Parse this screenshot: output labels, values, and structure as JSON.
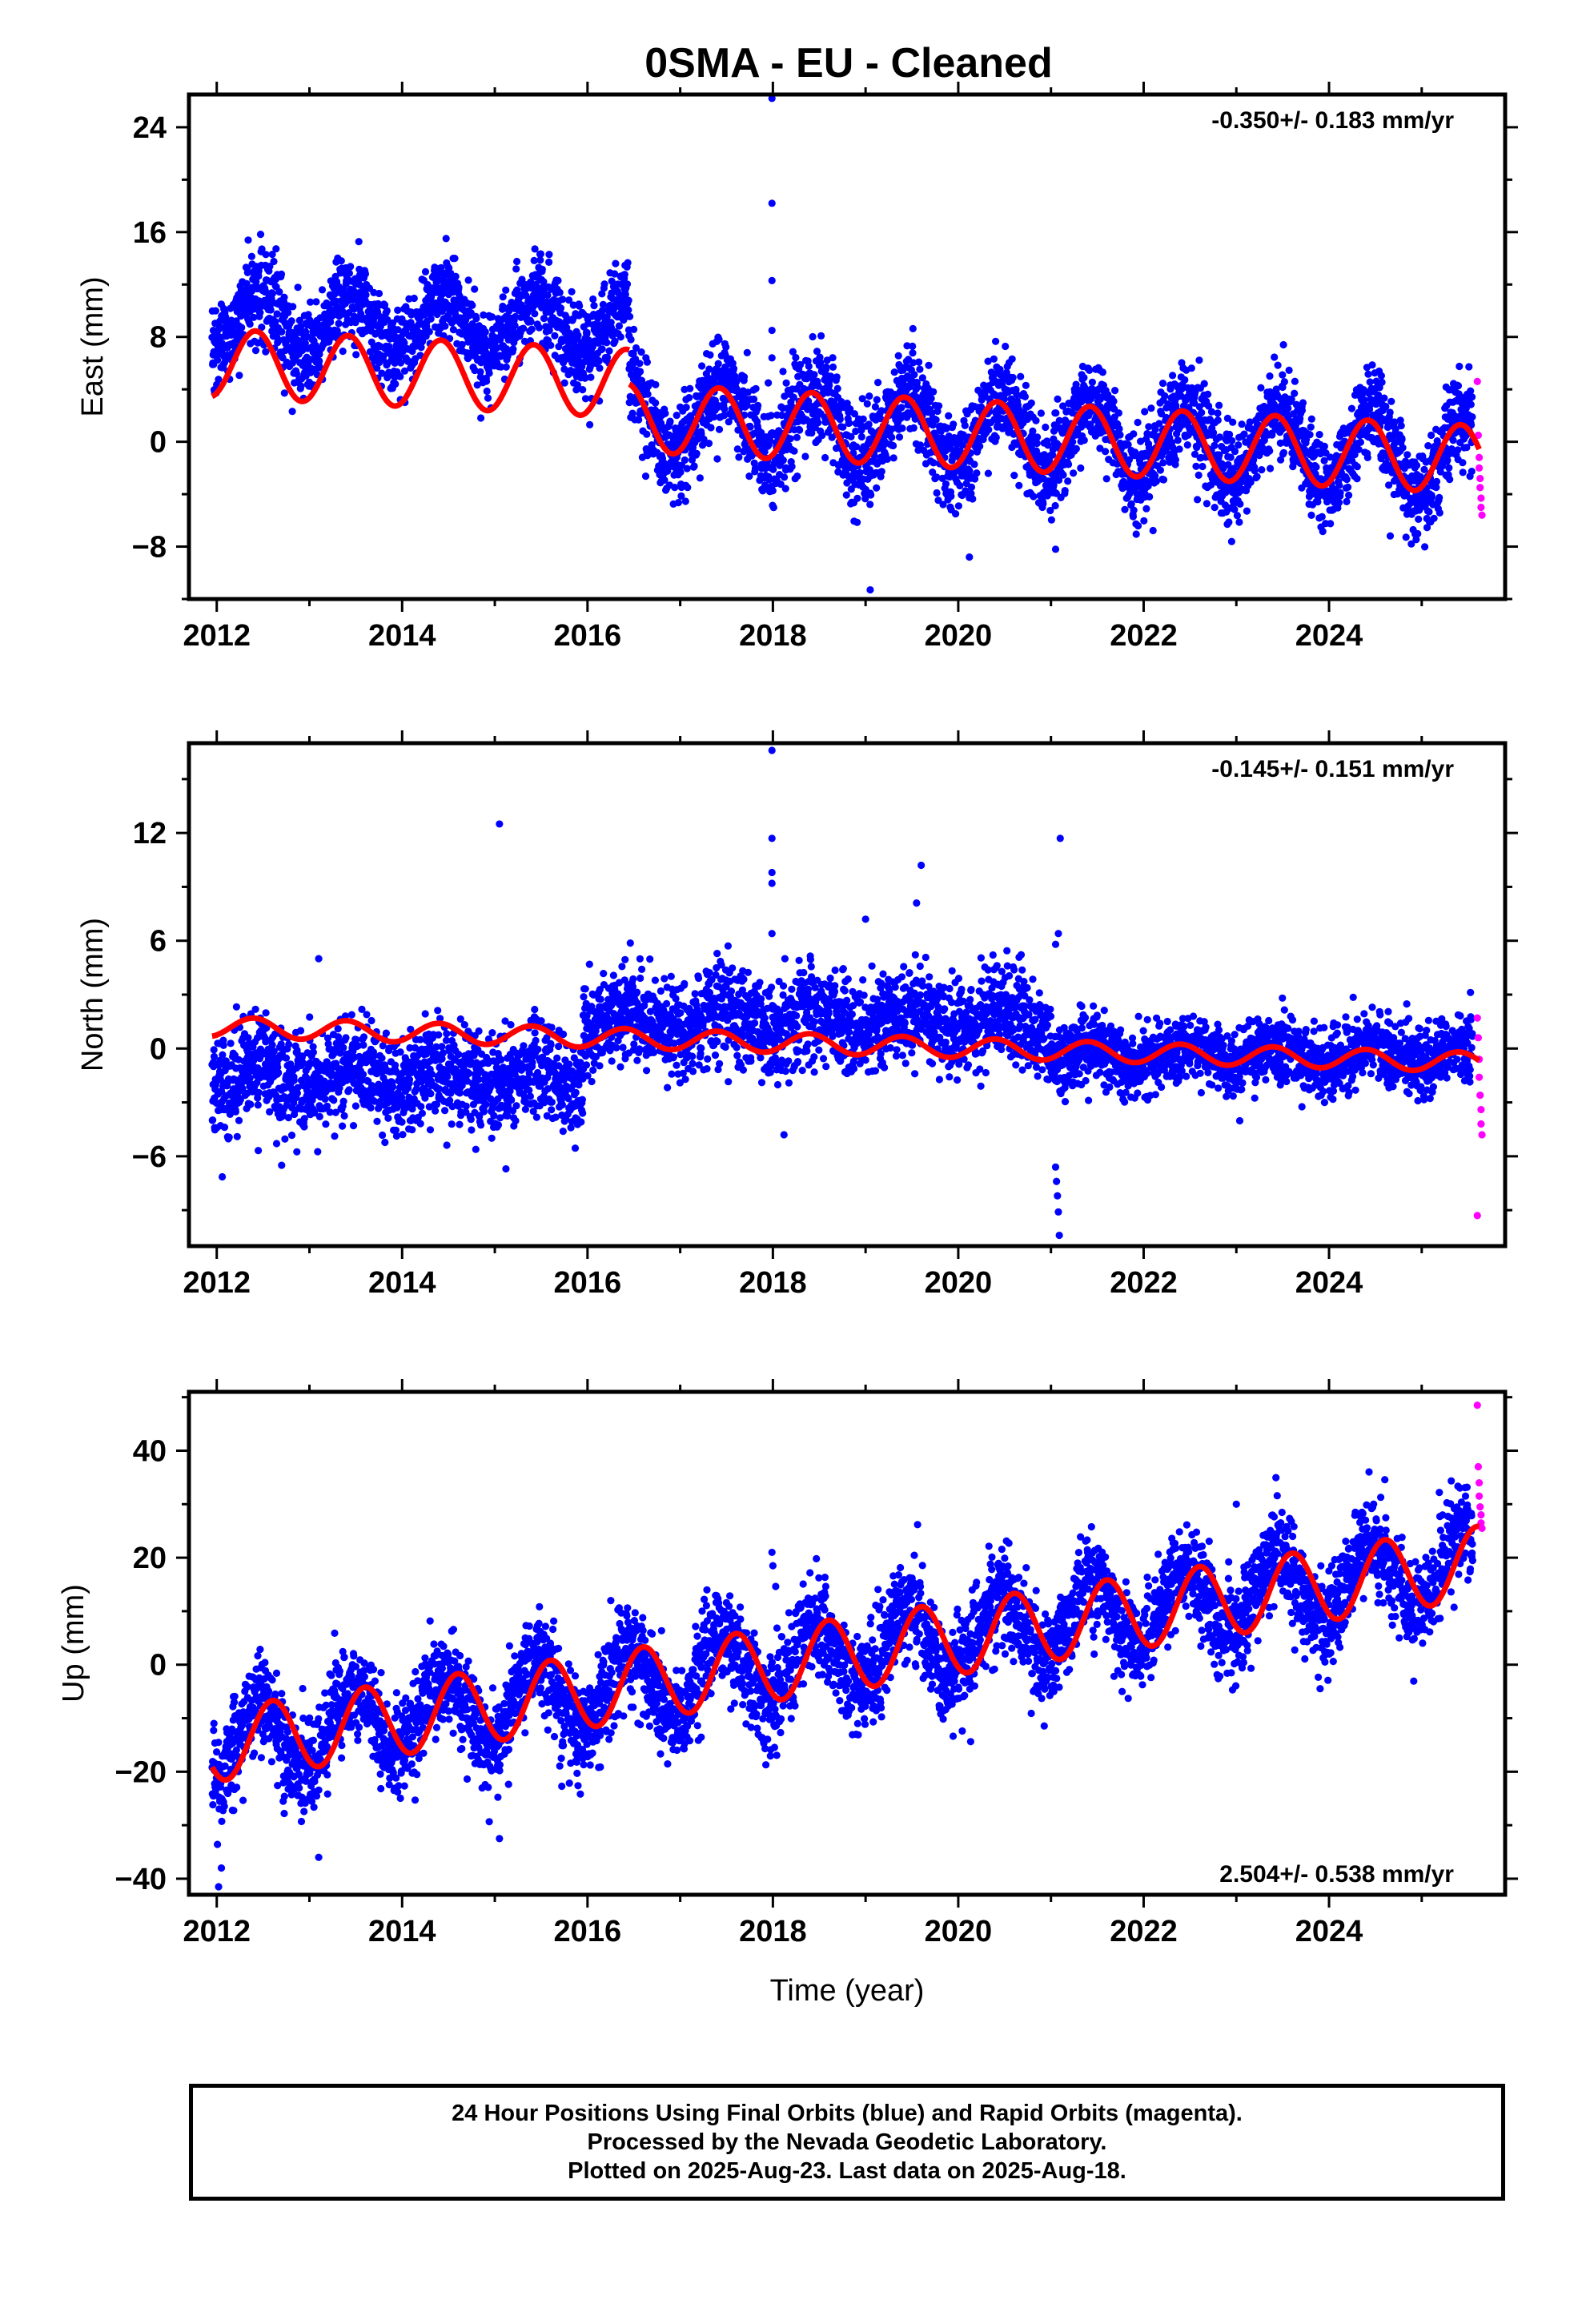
{
  "figure_title": "0SMA  - EU - Cleaned",
  "footer": {
    "line1": "24 Hour Positions Using Final Orbits (blue) and Rapid Orbits (magenta).",
    "line2": "Processed by the Nevada Geodetic Laboratory.",
    "line3": "Plotted on 2025-Aug-23. Last data on 2025-Aug-18."
  },
  "colors": {
    "final_orbits": "#0000ff",
    "rapid_orbits": "#ff00ff",
    "model_fit": "#ff0000",
    "frame": "#000000"
  },
  "chart_data": [
    {
      "type": "scatter",
      "panel": "east",
      "ylabel": "East (mm)",
      "xlabel": "",
      "xlim": [
        2011.7,
        2025.9
      ],
      "ylim": [
        -12,
        26.5
      ],
      "xticks": [
        2012,
        2014,
        2016,
        2018,
        2020,
        2022,
        2024
      ],
      "yticks": [
        -8,
        0,
        8,
        16,
        24
      ],
      "rate_label": "-0.350+/- 0.183 mm/yr",
      "rate_label_position": "top-right",
      "grid": false,
      "model": [
        {
          "t0": 2011.95,
          "t1": 2016.45,
          "offset": 6.0,
          "trend": -0.35,
          "amp": 2.6,
          "phase_peak": 0.42
        },
        {
          "t0": 2016.45,
          "t1": 2025.62,
          "offset": 3.4,
          "trend": -0.35,
          "amp": 2.6,
          "phase_peak": 0.42
        }
      ],
      "data_segments": [
        {
          "t0": 2011.95,
          "t1": 2016.45,
          "mean": 9.0,
          "trend": 0.0,
          "amp": 2.2,
          "noise": 1.7
        },
        {
          "t0": 2016.45,
          "t1": 2025.55,
          "mean": 2.0,
          "trend": -0.35,
          "amp": 2.8,
          "noise": 1.8
        }
      ],
      "outliers": [
        [
          2017.99,
          26.2
        ],
        [
          2017.99,
          18.2
        ],
        [
          2017.99,
          12.3
        ],
        [
          2017.99,
          8.5
        ],
        [
          2017.99,
          6.4
        ],
        [
          2019.05,
          -11.3
        ],
        [
          2020.12,
          -8.8
        ],
        [
          2021.05,
          -8.2
        ]
      ],
      "rapid": [
        [
          2025.6,
          4.6
        ],
        [
          2025.61,
          0.5
        ],
        [
          2025.62,
          -1.2
        ],
        [
          2025.62,
          -2.0
        ],
        [
          2025.63,
          -2.8
        ],
        [
          2025.63,
          -3.5
        ],
        [
          2025.64,
          -4.3
        ],
        [
          2025.64,
          -5.0
        ],
        [
          2025.65,
          -5.6
        ]
      ]
    },
    {
      "type": "scatter",
      "panel": "north",
      "ylabel": "North (mm)",
      "xlabel": "",
      "xlim": [
        2011.7,
        2025.9
      ],
      "ylim": [
        -11,
        17
      ],
      "xticks": [
        2012,
        2014,
        2016,
        2018,
        2020,
        2022,
        2024
      ],
      "yticks": [
        -6,
        0,
        6,
        12
      ],
      "rate_label": "-0.145+/- 0.151 mm/yr",
      "rate_label_position": "top-right",
      "grid": false,
      "model": [
        {
          "t0": 2011.95,
          "t1": 2025.62,
          "offset": 1.2,
          "trend": -0.145,
          "amp": 0.55,
          "phase_peak": 0.4
        }
      ],
      "data_segments": [
        {
          "t0": 2011.95,
          "t1": 2015.95,
          "mean": -1.6,
          "trend": 0.0,
          "amp": 0.6,
          "noise": 1.3
        },
        {
          "t0": 2015.95,
          "t1": 2021.0,
          "mean": 1.5,
          "trend": 0.0,
          "amp": 0.6,
          "noise": 1.3
        },
        {
          "t0": 2021.0,
          "t1": 2025.55,
          "mean": -0.4,
          "trend": 0.0,
          "amp": 0.6,
          "noise": 0.95
        }
      ],
      "outliers": [
        [
          2015.05,
          12.5
        ],
        [
          2017.99,
          16.6
        ],
        [
          2017.99,
          11.7
        ],
        [
          2017.99,
          9.8
        ],
        [
          2017.99,
          9.2
        ],
        [
          2017.99,
          6.4
        ],
        [
          2021.1,
          11.7
        ],
        [
          2021.08,
          6.4
        ],
        [
          2021.05,
          5.8
        ],
        [
          2021.05,
          -6.6
        ],
        [
          2021.06,
          -7.4
        ],
        [
          2021.07,
          -8.2
        ],
        [
          2021.08,
          -9.1
        ],
        [
          2021.09,
          -10.4
        ],
        [
          2019.6,
          10.2
        ],
        [
          2019.55,
          8.1
        ],
        [
          2019.0,
          7.2
        ],
        [
          2013.1,
          5.0
        ],
        [
          2018.12,
          -4.8
        ],
        [
          2015.12,
          -6.7
        ],
        [
          2012.7,
          -6.5
        ]
      ],
      "rapid": [
        [
          2025.6,
          1.7
        ],
        [
          2025.61,
          0.6
        ],
        [
          2025.62,
          -0.6
        ],
        [
          2025.62,
          -1.6
        ],
        [
          2025.63,
          -2.6
        ],
        [
          2025.64,
          -3.4
        ],
        [
          2025.64,
          -4.2
        ],
        [
          2025.65,
          -4.8
        ],
        [
          2025.6,
          -9.3
        ]
      ]
    },
    {
      "type": "scatter",
      "panel": "up",
      "ylabel": "Up (mm)",
      "xlabel": "Time (year)",
      "xlim": [
        2011.7,
        2025.9
      ],
      "ylim": [
        -43,
        51
      ],
      "xticks": [
        2012,
        2014,
        2016,
        2018,
        2020,
        2022,
        2024
      ],
      "yticks": [
        -40,
        -20,
        0,
        20,
        40
      ],
      "rate_label": "2.504+/- 0.538 mm/yr",
      "rate_label_position": "bottom-right",
      "grid": false,
      "model": [
        {
          "t0": 2011.95,
          "t1": 2025.62,
          "offset": -15.0,
          "trend": 2.504,
          "amp": 6.8,
          "phase_peak": 0.6
        }
      ],
      "data_segments": [
        {
          "t0": 2011.95,
          "t1": 2025.55,
          "mean": -15.0,
          "trend": 2.504,
          "amp": 6.8,
          "noise": 4.6
        }
      ],
      "outliers": [
        [
          2012.02,
          -41.5
        ],
        [
          2012.05,
          -38.0
        ],
        [
          2013.1,
          -36.0
        ],
        [
          2015.05,
          -32.5
        ],
        [
          2017.99,
          21.0
        ],
        [
          2018.0,
          18.5
        ],
        [
          2023.0,
          30.0
        ]
      ],
      "rapid": [
        [
          2025.6,
          48.5
        ],
        [
          2025.61,
          37.0
        ],
        [
          2025.62,
          34.0
        ],
        [
          2025.62,
          31.5
        ],
        [
          2025.63,
          29.5
        ],
        [
          2025.64,
          28.0
        ],
        [
          2025.64,
          26.5
        ],
        [
          2025.65,
          25.5
        ]
      ]
    }
  ]
}
